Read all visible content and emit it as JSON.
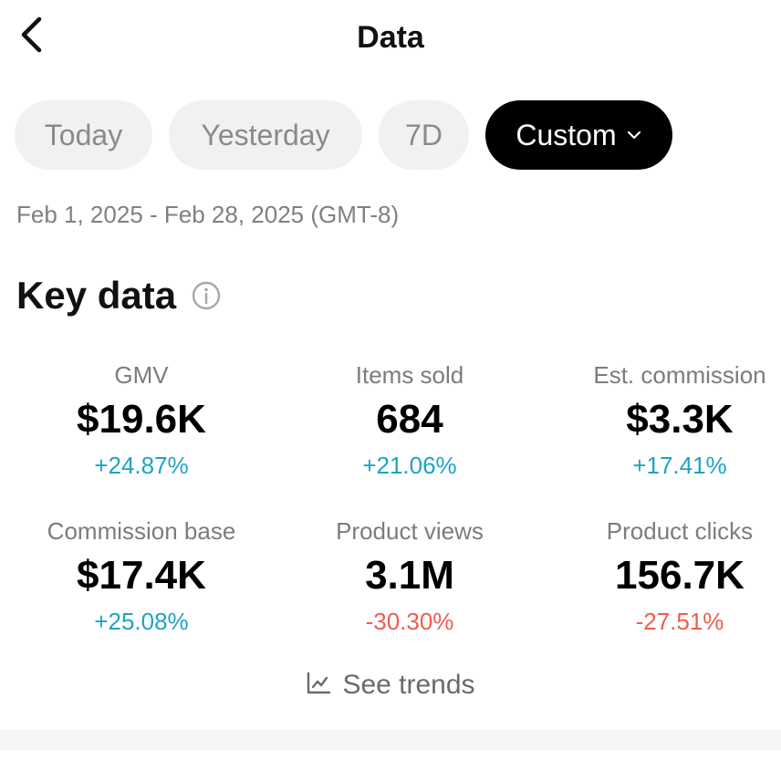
{
  "header": {
    "title": "Data",
    "back_icon": "chevron-left-icon"
  },
  "date_tabs": [
    {
      "label": "Today",
      "active": false
    },
    {
      "label": "Yesterday",
      "active": false
    },
    {
      "label": "7D",
      "active": false
    },
    {
      "label": "Custom",
      "active": true
    }
  ],
  "date_range": "Feb 1, 2025 - Feb 28, 2025 (GMT-8)",
  "key_data": {
    "title": "Key data",
    "info_icon": "info-icon",
    "metrics": [
      {
        "label": "GMV",
        "value": "$19.6K",
        "change": "+24.87%",
        "trend": "positive"
      },
      {
        "label": "Items sold",
        "value": "684",
        "change": "+21.06%",
        "trend": "positive"
      },
      {
        "label": "Est. commission",
        "value": "$3.3K",
        "change": "+17.41%",
        "trend": "positive"
      },
      {
        "label": "Commission base",
        "value": "$17.4K",
        "change": "+25.08%",
        "trend": "positive"
      },
      {
        "label": "Product views",
        "value": "3.1M",
        "change": "-30.30%",
        "trend": "negative"
      },
      {
        "label": "Product clicks",
        "value": "156.7K",
        "change": "-27.51%",
        "trend": "negative"
      }
    ]
  },
  "see_trends": {
    "label": "See trends",
    "icon": "line-chart-icon"
  },
  "colors": {
    "positive": "#1fa3c4",
    "negative": "#ef5c50",
    "active_tab_bg": "#000000",
    "inactive_tab_bg": "#f1f1f1"
  }
}
